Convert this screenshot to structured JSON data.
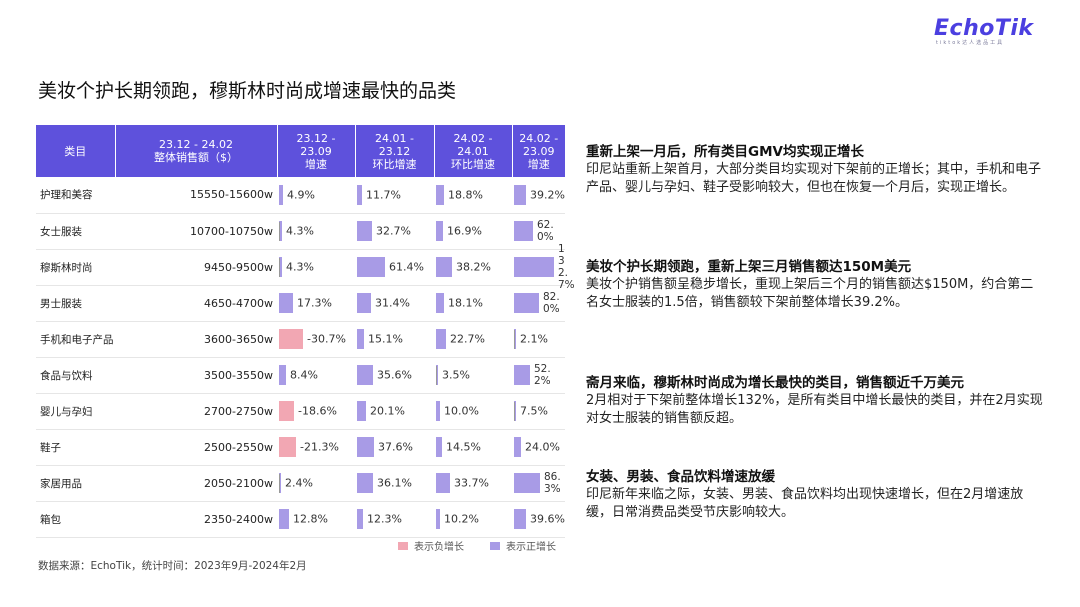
{
  "logo": {
    "main": "EchoTik",
    "sub": "tiktok达人选品工具"
  },
  "title": "美妆个护长期领跑，穆斯林时尚成增速最快的品类",
  "table": {
    "headers": [
      "类目",
      "23.12 - 24.02\n整体销售额（$）",
      "23.12 -\n23.09\n增速",
      "24.01 -\n23.12\n环比增速",
      "24.02 -\n24.01\n环比增速",
      "24.02 -\n23.09\n增速"
    ],
    "rows": [
      {
        "cat": "护理和美容",
        "range": "15550-15600w",
        "g1": "4.9%",
        "g2": "11.7%",
        "g3": "18.8%",
        "g4": "39.2%"
      },
      {
        "cat": "女士服装",
        "range": "10700-10750w",
        "g1": "4.3%",
        "g2": "32.7%",
        "g3": "16.9%",
        "g4": "62.0%"
      },
      {
        "cat": "穆斯林时尚",
        "range": "9450-9500w",
        "g1": "4.3%",
        "g2": "61.4%",
        "g3": "38.2%",
        "g4": "132.7%"
      },
      {
        "cat": "男士服装",
        "range": "4650-4700w",
        "g1": "17.3%",
        "g2": "31.4%",
        "g3": "18.1%",
        "g4": "82.0%"
      },
      {
        "cat": "手机和电子产品",
        "range": "3600-3650w",
        "g1": "-30.7%",
        "g2": "15.1%",
        "g3": "22.7%",
        "g4": "2.1%"
      },
      {
        "cat": "食品与饮料",
        "range": "3500-3550w",
        "g1": "8.4%",
        "g2": "35.6%",
        "g3": "3.5%",
        "g4": "52.2%"
      },
      {
        "cat": "婴儿与孕妇",
        "range": "2700-2750w",
        "g1": "-18.6%",
        "g2": "20.1%",
        "g3": "10.0%",
        "g4": "7.5%"
      },
      {
        "cat": "鞋子",
        "range": "2500-2550w",
        "g1": "-21.3%",
        "g2": "37.6%",
        "g3": "14.5%",
        "g4": "24.0%"
      },
      {
        "cat": "家居用品",
        "range": "2050-2100w",
        "g1": "2.4%",
        "g2": "36.1%",
        "g3": "33.7%",
        "g4": "86.3%"
      },
      {
        "cat": "箱包",
        "range": "2350-2400w",
        "g1": "12.8%",
        "g2": "12.3%",
        "g3": "10.2%",
        "g4": "39.6%"
      }
    ],
    "values": [
      [
        4.9,
        11.7,
        18.8,
        39.2
      ],
      [
        4.3,
        32.7,
        16.9,
        62.0
      ],
      [
        4.3,
        61.4,
        38.2,
        132.7
      ],
      [
        17.3,
        31.4,
        18.1,
        82.0
      ],
      [
        -30.7,
        15.1,
        22.7,
        2.1
      ],
      [
        8.4,
        35.6,
        3.5,
        52.2
      ],
      [
        -18.6,
        20.1,
        10.0,
        7.5
      ],
      [
        -21.3,
        37.6,
        14.5,
        24.0
      ],
      [
        2.4,
        36.1,
        33.7,
        86.3
      ],
      [
        12.8,
        12.3,
        10.2,
        39.6
      ]
    ],
    "legend_negative": "表示负增长",
    "legend_positive": "表示正增长",
    "color_negative": "#f2a7b3",
    "color_positive": "#a89be6",
    "header_color": "#5e51dc"
  },
  "source": "数据来源：EchoTik，统计时间：2023年9月-2024年2月",
  "panels": [
    {
      "heading": "重新上架一月后，所有类目GMV均实现正增长",
      "body": "印尼站重新上架首月，大部分类目均实现对下架前的正增长；其中，手机和电子产品、婴儿与孕妇、鞋子受影响较大，但也在恢复一个月后，实现正增长。"
    },
    {
      "heading": "美妆个护长期领跑，重新上架三月销售额达150M美元",
      "body": "美妆个护销售额呈稳步增长，重现上架后三个月的销售额达$150M，约合第二名女士服装的1.5倍，销售额较下架前整体增长39.2%。"
    },
    {
      "heading": "斋月来临，穆斯林时尚成为增长最快的类目，销售额近千万美元",
      "body": "2月相对于下架前整体增长132%，是所有类目中增长最快的类目，并在2月实现对女士服装的销售额反超。"
    },
    {
      "heading": "女装、男装、食品饮料增速放缓",
      "body": "印尼新年来临之际，女装、男装、食品饮料均出现快速增长，但在2月增速放缓，日常消费品类受节庆影响较大。"
    }
  ]
}
